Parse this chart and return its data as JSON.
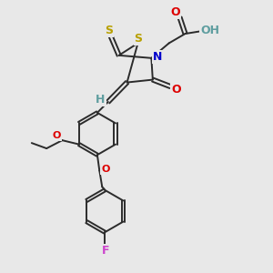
{
  "background_color": "#e8e8e8",
  "bond_color": "#2b2b2b",
  "atom_colors": {
    "S": "#b8a000",
    "N": "#0000cc",
    "O": "#dd0000",
    "H": "#5f9ea0",
    "F": "#cc44cc",
    "C": "#2b2b2b"
  },
  "lw": 1.4,
  "font_size": 9
}
